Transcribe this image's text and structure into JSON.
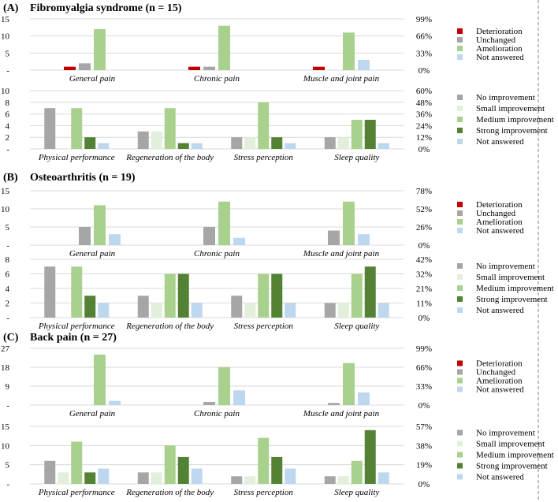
{
  "chart_data": [
    {
      "type": "bar",
      "section": "A",
      "label": "(A)",
      "title": "Fibromyalgia syndrome (n = 15)",
      "categories": [
        "General pain",
        "Chronic pain",
        "Muscle and joint pain"
      ],
      "series": [
        {
          "name": "Deterioration",
          "values": [
            1,
            1,
            1
          ],
          "color": "#c00000"
        },
        {
          "name": "Unchanged",
          "values": [
            2,
            1,
            0
          ],
          "color": "#a6a6a6"
        },
        {
          "name": "Amelioration",
          "values": [
            12,
            13,
            11
          ],
          "color": "#a9d18e"
        },
        {
          "name": "Not answered",
          "values": [
            0,
            0,
            3
          ],
          "color": "#bdd7ee"
        }
      ],
      "ylim": [
        0,
        15
      ],
      "yticks": [
        0,
        5,
        10,
        15
      ],
      "ytick_labels": [
        "-",
        "5",
        "10",
        "15"
      ],
      "y2ticks": [
        "0%",
        "33%",
        "66%",
        "99%"
      ]
    },
    {
      "type": "bar",
      "section": "A",
      "categories": [
        "Physical performance",
        "Regeneration of the body",
        "Stress perception",
        "Sleep quality"
      ],
      "series": [
        {
          "name": "No improvement",
          "values": [
            7,
            3,
            2,
            2
          ],
          "color": "#a6a6a6"
        },
        {
          "name": "Small improvement",
          "values": [
            0,
            3,
            2,
            2
          ],
          "color": "#e2efda"
        },
        {
          "name": "Medium improvement",
          "values": [
            7,
            7,
            8,
            5
          ],
          "color": "#a9d18e"
        },
        {
          "name": "Strong improvement",
          "values": [
            2,
            1,
            2,
            5
          ],
          "color": "#548235"
        },
        {
          "name": "Not answered",
          "values": [
            1,
            1,
            1,
            1
          ],
          "color": "#bdd7ee"
        }
      ],
      "ylim": [
        0,
        10
      ],
      "yticks": [
        0,
        2,
        4,
        6,
        8,
        10
      ],
      "ytick_labels": [
        "-",
        "2",
        "4",
        "6",
        "8",
        "10"
      ],
      "y2ticks": [
        "0%",
        "12%",
        "24%",
        "36%",
        "48%",
        "60%"
      ]
    },
    {
      "type": "bar",
      "section": "B",
      "label": "(B)",
      "title": "Osteoarthritis (n = 19)",
      "categories": [
        "General pain",
        "Chronic pain",
        "Muscle and joint pain"
      ],
      "series": [
        {
          "name": "Deterioration",
          "values": [
            0,
            0,
            0
          ],
          "color": "#c00000"
        },
        {
          "name": "Unchanged",
          "values": [
            5,
            5,
            4
          ],
          "color": "#a6a6a6"
        },
        {
          "name": "Amelioration",
          "values": [
            11,
            12,
            12
          ],
          "color": "#a9d18e"
        },
        {
          "name": "Not answered",
          "values": [
            3,
            2,
            3
          ],
          "color": "#bdd7ee"
        }
      ],
      "ylim": [
        0,
        15
      ],
      "yticks": [
        0,
        5,
        10,
        15
      ],
      "ytick_labels": [
        "-",
        "5",
        "10",
        "15"
      ],
      "y2ticks": [
        "0%",
        "26%",
        "52%",
        "78%"
      ]
    },
    {
      "type": "bar",
      "section": "B",
      "categories": [
        "Physical performance",
        "Regeneration of the body",
        "Stress perception",
        "Sleep quality"
      ],
      "series": [
        {
          "name": "No improvement",
          "values": [
            7,
            3,
            3,
            2
          ],
          "color": "#a6a6a6"
        },
        {
          "name": "Small improvement",
          "values": [
            0,
            2,
            2,
            2
          ],
          "color": "#e2efda"
        },
        {
          "name": "Medium improvement",
          "values": [
            7,
            6,
            6,
            6
          ],
          "color": "#a9d18e"
        },
        {
          "name": "Strong improvement",
          "values": [
            3,
            6,
            6,
            7
          ],
          "color": "#548235"
        },
        {
          "name": "Not answered",
          "values": [
            2,
            2,
            2,
            2
          ],
          "color": "#bdd7ee"
        }
      ],
      "ylim": [
        0,
        8
      ],
      "yticks": [
        0,
        2,
        4,
        6,
        8
      ],
      "ytick_labels": [
        "-",
        "2",
        "4",
        "6",
        "8"
      ],
      "y2ticks": [
        "0%",
        "11%",
        "21%",
        "32%",
        "42%"
      ]
    },
    {
      "type": "bar",
      "section": "C",
      "label": "(C)",
      "title": "Back pain (n = 27)",
      "categories": [
        "General pain",
        "Chronic pain",
        "Muscle and joint pain"
      ],
      "series": [
        {
          "name": "Deterioration",
          "values": [
            0,
            0,
            0
          ],
          "color": "#c00000"
        },
        {
          "name": "Unchanged",
          "values": [
            0,
            1.5,
            1
          ],
          "color": "#a6a6a6"
        },
        {
          "name": "Amelioration",
          "values": [
            24,
            18,
            20
          ],
          "color": "#a9d18e"
        },
        {
          "name": "Not answered",
          "values": [
            2,
            7,
            6
          ],
          "color": "#bdd7ee"
        }
      ],
      "ylim": [
        0,
        27
      ],
      "yticks": [
        0,
        9,
        18,
        27
      ],
      "ytick_labels": [
        "-",
        "9",
        "18",
        "27"
      ],
      "y2ticks": [
        "0%",
        "33%",
        "66%",
        "99%"
      ]
    },
    {
      "type": "bar",
      "section": "C",
      "categories": [
        "Physical performance",
        "Regeneration of the body",
        "Stress perception",
        "Sleep quality"
      ],
      "series": [
        {
          "name": "No improvement",
          "values": [
            6,
            3,
            2,
            2
          ],
          "color": "#a6a6a6"
        },
        {
          "name": "Small improvement",
          "values": [
            3,
            3,
            2,
            2
          ],
          "color": "#e2efda"
        },
        {
          "name": "Medium improvement",
          "values": [
            11,
            10,
            12,
            6
          ],
          "color": "#a9d18e"
        },
        {
          "name": "Strong improvement",
          "values": [
            3,
            7,
            7,
            14
          ],
          "color": "#548235"
        },
        {
          "name": "Not answered",
          "values": [
            4,
            4,
            4,
            3
          ],
          "color": "#bdd7ee"
        }
      ],
      "ylim": [
        0,
        15
      ],
      "yticks": [
        0,
        5,
        10,
        15
      ],
      "ytick_labels": [
        "-",
        "5",
        "10",
        "15"
      ],
      "y2ticks": [
        "0%",
        "19%",
        "38%",
        "57%"
      ]
    }
  ]
}
